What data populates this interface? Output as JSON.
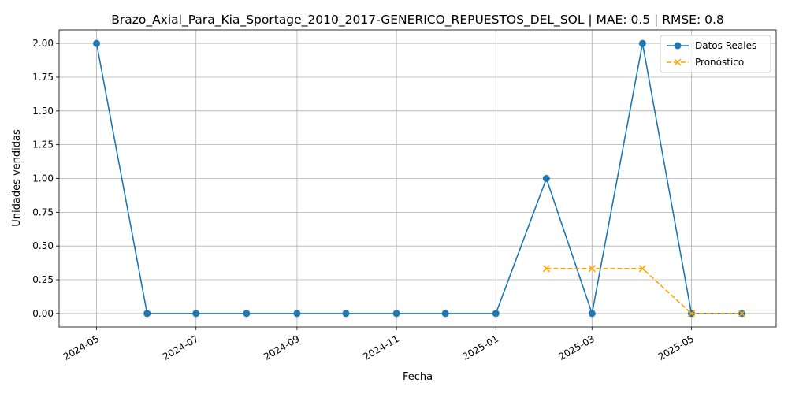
{
  "chart_data": {
    "type": "line",
    "title": "Brazo_Axial_Para_Kia_Sportage_2010_2017-GENERICO_REPUESTOS_DEL_SOL | MAE: 0.5 | RMSE: 0.8",
    "xlabel": "Fecha",
    "ylabel": "Unidades vendidas",
    "xlim": [
      "2024-04-08",
      "2025-06-22"
    ],
    "ylim": [
      -0.1,
      2.1
    ],
    "grid": true,
    "legend_position": "top-right",
    "x_ticks": [
      "2024-05",
      "2024-07",
      "2024-09",
      "2024-11",
      "2025-01",
      "2025-03",
      "2025-05"
    ],
    "y_ticks": [
      "0.00",
      "0.25",
      "0.50",
      "0.75",
      "1.00",
      "1.25",
      "1.50",
      "1.75",
      "2.00"
    ],
    "series": [
      {
        "name": "Datos Reales",
        "color": "#1f77b4",
        "marker": "circle",
        "line_style": "solid",
        "x": [
          "2024-05-01",
          "2024-06-01",
          "2024-07-01",
          "2024-08-01",
          "2024-09-01",
          "2024-10-01",
          "2024-11-01",
          "2024-12-01",
          "2025-01-01",
          "2025-02-01",
          "2025-03-01",
          "2025-04-01",
          "2025-05-01",
          "2025-06-01"
        ],
        "values": [
          2,
          0,
          0,
          0,
          0,
          0,
          0,
          0,
          0,
          1,
          0,
          2,
          0,
          0
        ]
      },
      {
        "name": "Pronóstico",
        "color": "#ffa500",
        "marker": "x",
        "line_style": "dashed",
        "x": [
          "2025-02-01",
          "2025-03-01",
          "2025-04-01",
          "2025-05-01",
          "2025-06-01"
        ],
        "values": [
          0.333,
          0.333,
          0.333,
          0.0,
          0.0
        ]
      }
    ]
  }
}
